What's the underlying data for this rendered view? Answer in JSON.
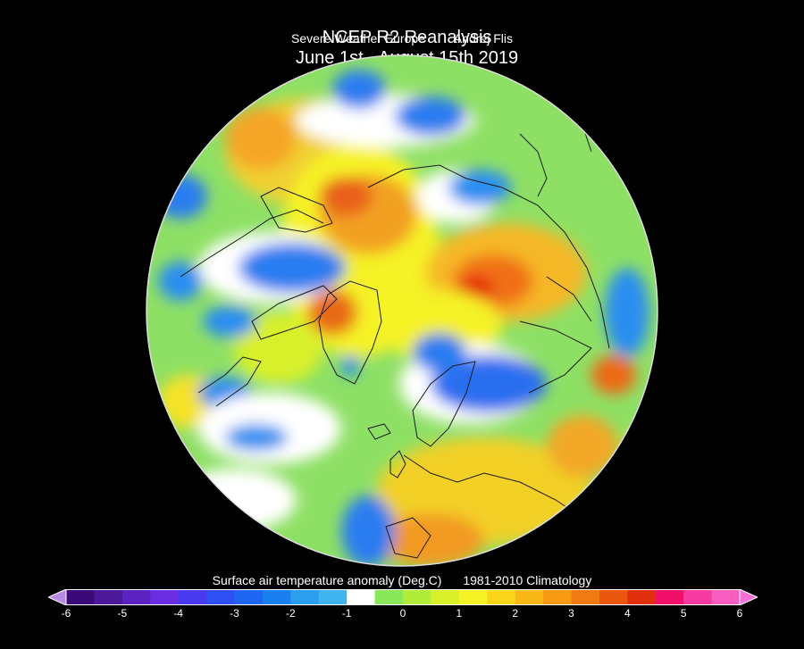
{
  "header": {
    "title_left": "NCEP R2 Reanalysis",
    "title_right": "June 1st - August 15th 2019",
    "subtitle_left": "Severe Weather Europe",
    "subtitle_right": "Andrej Flis"
  },
  "colorbar": {
    "title": "Surface air temperature anomaly (Deg.C)",
    "climatology": "1981-2010 Climatology",
    "ticks": [
      "-6",
      "-5",
      "-4",
      "-3",
      "-2",
      "-1",
      "0",
      "1",
      "2",
      "3",
      "4",
      "5",
      "6"
    ],
    "colors": [
      "#3b0a78",
      "#4a1899",
      "#5a23c0",
      "#6a2ee0",
      "#4a3aef",
      "#2f4ff2",
      "#1f66f2",
      "#1a80f0",
      "#2c9ef0",
      "#3fb4ef",
      "#ffffff",
      "#88e85a",
      "#b2ec3a",
      "#d8f02a",
      "#f5f226",
      "#f9d51c",
      "#fab818",
      "#f89a14",
      "#f27a12",
      "#ea5810",
      "#e2300e",
      "#f0106a",
      "#f53aa0",
      "#f85ec0"
    ],
    "over_color": "#f870d8",
    "under_color": "#b88ae8"
  },
  "map": {
    "projection": "north-polar-stereographic",
    "background": "#8ee065"
  }
}
